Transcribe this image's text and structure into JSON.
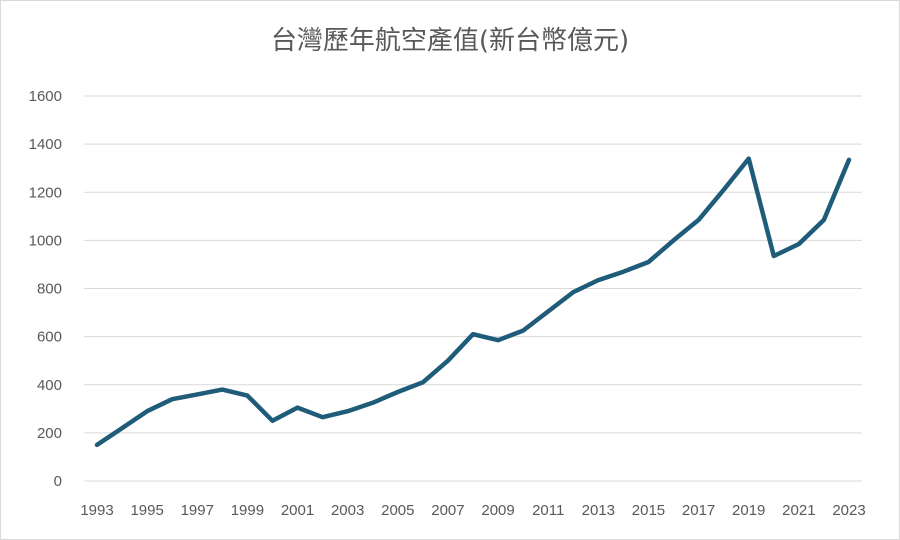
{
  "chart_data": {
    "type": "line",
    "title": "台灣歷年航空產值(新台幣億元)",
    "xlabel": "",
    "ylabel": "",
    "x": [
      1993,
      1994,
      1995,
      1996,
      1997,
      1998,
      1999,
      2000,
      2001,
      2002,
      2003,
      2004,
      2005,
      2006,
      2007,
      2008,
      2009,
      2010,
      2011,
      2012,
      2013,
      2014,
      2015,
      2016,
      2017,
      2018,
      2019,
      2020,
      2021,
      2022,
      2023
    ],
    "x_tick_labels": [
      "1993",
      "1995",
      "1997",
      "1999",
      "2001",
      "2003",
      "2005",
      "2007",
      "2009",
      "2011",
      "2013",
      "2015",
      "2017",
      "2019",
      "2021",
      "2023"
    ],
    "series": [
      {
        "name": "",
        "values": [
          150,
          220,
          290,
          340,
          360,
          380,
          355,
          250,
          305,
          265,
          290,
          325,
          370,
          410,
          500,
          610,
          585,
          625,
          705,
          785,
          835,
          870,
          910,
          1000,
          1085,
          1210,
          1340,
          935,
          985,
          1085,
          1335
        ],
        "color": "#1f5c7a"
      }
    ],
    "ylim": [
      0,
      1600
    ],
    "y_ticks": [
      0,
      200,
      400,
      600,
      800,
      1000,
      1200,
      1400,
      1600
    ],
    "grid": true,
    "legend": "none"
  }
}
